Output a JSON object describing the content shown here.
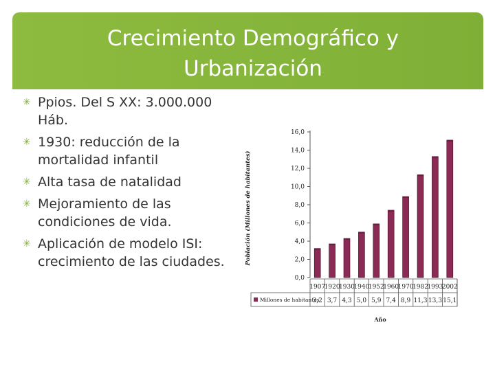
{
  "slide": {
    "title_line1": "Crecimiento Demográfico y",
    "title_line2": "Urbanización",
    "bullet_icon": "asterisk-icon",
    "accent_color": "#8dbb3f",
    "bullets": [
      "Ppios. Del S XX: 3.000.000 Háb.",
      "1930: reducción de la mortalidad infantil",
      "Alta tasa de natalidad",
      "Mejoramiento de las condiciones de vida.",
      "Aplicación de modelo ISI: crecimiento de las ciudades."
    ]
  },
  "chart_data": {
    "type": "bar",
    "ylabel": "Población (Millones de habitantes)",
    "xlabel": "Año",
    "categories": [
      "1907",
      "1920",
      "1930",
      "1940",
      "1952",
      "1960",
      "1970",
      "1982",
      "1993",
      "2002"
    ],
    "series": [
      {
        "name": "Millones de habitantes",
        "values": [
          3.2,
          3.7,
          4.3,
          5.0,
          5.9,
          7.4,
          8.9,
          11.3,
          13.3,
          15.1
        ],
        "color": "#8b2a55"
      }
    ],
    "value_labels": [
      "3,2",
      "3,7",
      "4,3",
      "5,0",
      "5,9",
      "7,4",
      "8,9",
      "11,3",
      "13,3",
      "15,1"
    ],
    "yticks": [
      "0,0",
      "2,0",
      "4,0",
      "6,0",
      "8,0",
      "10,0",
      "12,0",
      "14,0",
      "16,0"
    ],
    "ylim": [
      0,
      16
    ],
    "grid": false,
    "legend": "table-below"
  }
}
